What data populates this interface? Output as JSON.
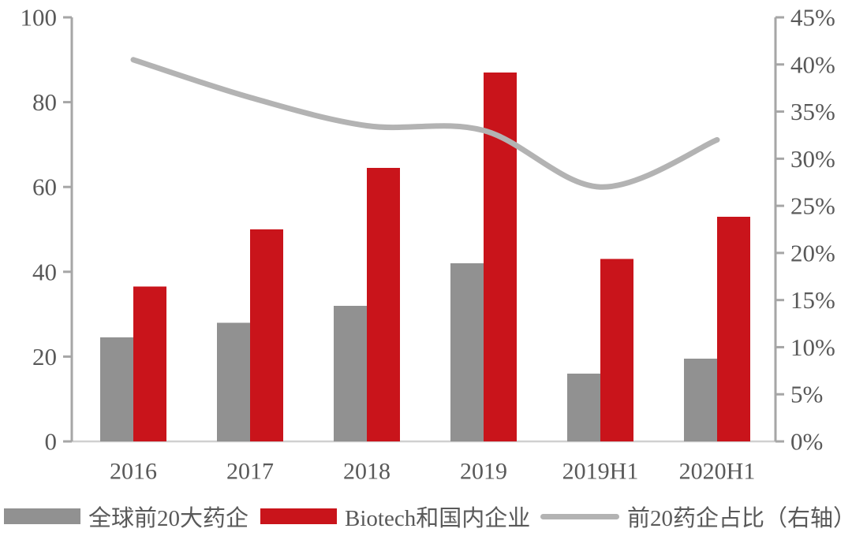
{
  "chart_data": {
    "type": "combo",
    "categories": [
      "2016",
      "2017",
      "2018",
      "2019",
      "2019H1",
      "2020H1"
    ],
    "series": [
      {
        "name": "全球前20大药企",
        "type": "bar",
        "axis": "left",
        "color": "#919191",
        "values": [
          24.5,
          28,
          32,
          42,
          16,
          19.5
        ]
      },
      {
        "name": "Biotech和国内企业",
        "type": "bar",
        "axis": "left",
        "color": "#C9141B",
        "values": [
          36.5,
          50,
          64.5,
          87,
          43,
          53
        ]
      },
      {
        "name": "前20药企占比（右轴）",
        "type": "line",
        "axis": "right",
        "color": "#B3B3B3",
        "unit": "%",
        "values": [
          40.5,
          36.5,
          33.5,
          33,
          27,
          32
        ]
      }
    ],
    "left_axis": {
      "min": 0,
      "max": 100,
      "step": 20,
      "tick_labels": [
        "0",
        "20",
        "40",
        "60",
        "80",
        "100"
      ]
    },
    "right_axis": {
      "min": 0,
      "max": 45,
      "step": 5,
      "tick_labels": [
        "0%",
        "5%",
        "10%",
        "15%",
        "20%",
        "25%",
        "30%",
        "35%",
        "40%",
        "45%"
      ]
    },
    "title": "",
    "grid": false,
    "legend_position": "bottom"
  },
  "colors": {
    "axis_line": "#A6A6A6",
    "baseline": "#D0D0D0",
    "tick": "#A6A6A6",
    "text": "#595959"
  }
}
